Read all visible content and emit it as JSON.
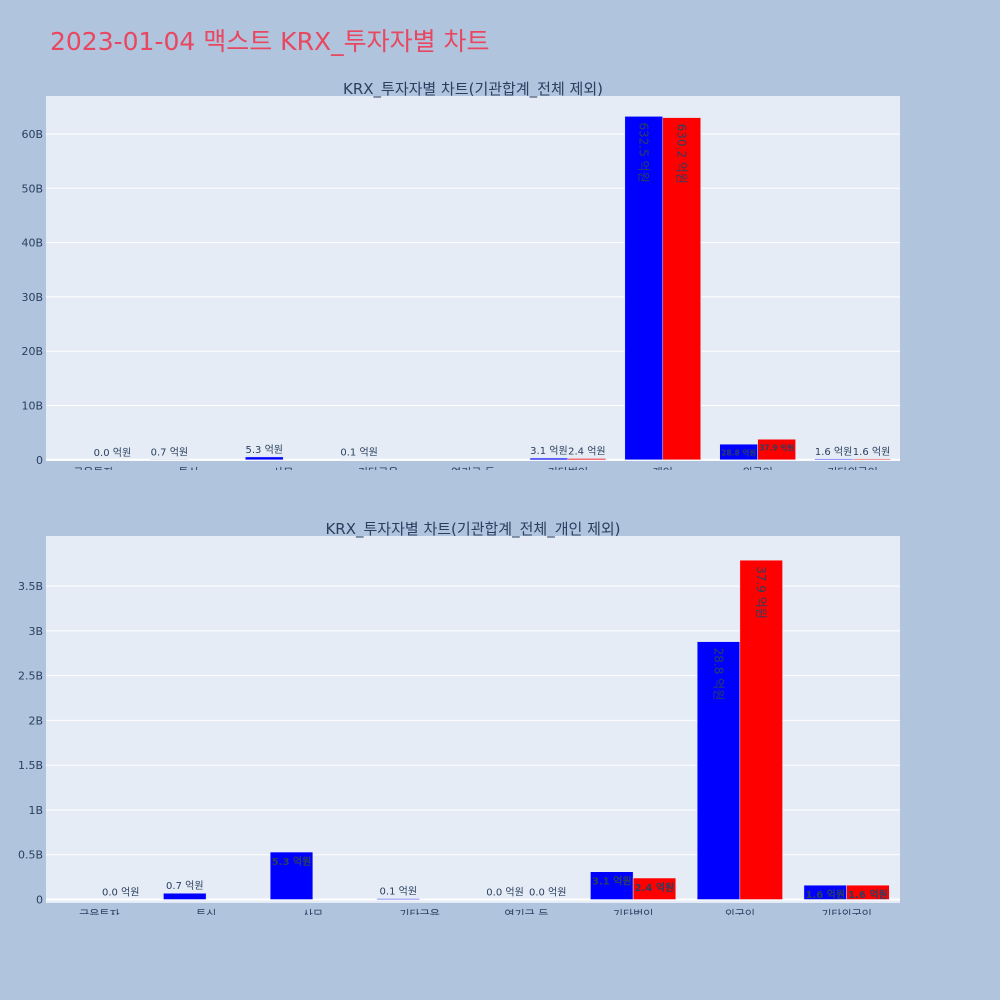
{
  "page": {
    "title": "2023-01-04 맥스트 KRX_투자자별 차트"
  },
  "colors": {
    "background": "#b0c4de",
    "plot_bg": "#e5ecf6",
    "buy": "#0000ff",
    "sell": "#ff0000",
    "title": "#e8475f",
    "text": "#2a3f5f"
  },
  "chart_data": [
    {
      "type": "bar",
      "title": "KRX_투자자별 차트(기관합계_전체 제외)",
      "categories": [
        "금융투자",
        "투신",
        "사모",
        "기타금융",
        "연기금 등",
        "기타법인",
        "개인",
        "외국인",
        "기타외국인"
      ],
      "ylim": [
        0,
        67000000000
      ],
      "yticks": [
        0,
        10000000000,
        20000000000,
        30000000000,
        40000000000,
        50000000000,
        60000000000
      ],
      "ytick_labels": [
        "0",
        "10B",
        "20B",
        "30B",
        "40B",
        "50B",
        "60B"
      ],
      "grid": true,
      "series": [
        {
          "color": "#0000ff",
          "values": [
            0,
            70000000,
            530000000,
            10000000,
            0,
            310000000,
            63250000000,
            2880000000,
            160000000
          ],
          "labels": [
            "",
            "0.7 억원",
            "5.3 억원",
            "0.1 억원",
            "",
            "3.1 억원",
            "632.5 억원",
            "28.8 억원",
            "1.6 억원"
          ]
        },
        {
          "color": "#ff0000",
          "values": [
            0,
            0,
            0,
            0,
            0,
            240000000,
            63020000000,
            3790000000,
            160000000
          ],
          "labels": [
            "0.0 억원",
            "",
            "",
            "",
            "",
            "2.4 억원",
            "630.2 억원",
            "37.9 억원",
            "1.6 억원"
          ]
        }
      ]
    },
    {
      "type": "bar",
      "title": "KRX_투자자별 차트(기관합계_전체_개인 제외)",
      "categories": [
        "금융투자",
        "투신",
        "사모",
        "기타금융",
        "연기금 등",
        "기타법인",
        "외국인",
        "기타외국인"
      ],
      "ylim": [
        0,
        4060000000
      ],
      "yticks": [
        0,
        500000000,
        1000000000,
        1500000000,
        2000000000,
        2500000000,
        3000000000,
        3500000000
      ],
      "ytick_labels": [
        "0",
        "0.5B",
        "1B",
        "1.5B",
        "2B",
        "2.5B",
        "3B",
        "3.5B"
      ],
      "grid": true,
      "series": [
        {
          "color": "#0000ff",
          "values": [
            0,
            70000000,
            530000000,
            10000000,
            0,
            310000000,
            2880000000,
            160000000
          ],
          "labels": [
            "",
            "0.7 억원",
            "5.3 억원",
            "0.1 억원",
            "0.0 억원",
            "3.1 억원",
            "28.8 억원",
            "1.6 억원"
          ]
        },
        {
          "color": "#ff0000",
          "values": [
            0,
            0,
            0,
            0,
            0,
            240000000,
            3790000000,
            160000000
          ],
          "labels": [
            "0.0 억원",
            "",
            "",
            "",
            "0.0 억원",
            "2.4 억원",
            "37.9 억원",
            "1.6 억원"
          ]
        }
      ]
    }
  ]
}
